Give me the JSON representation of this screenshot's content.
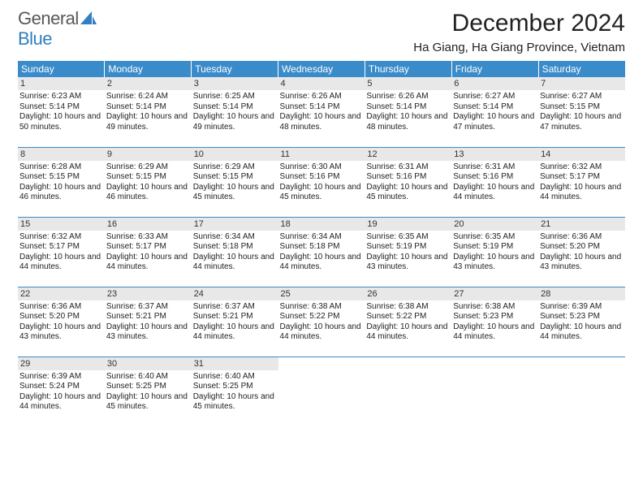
{
  "brand": {
    "part1": "General",
    "part2": "Blue"
  },
  "title": "December 2024",
  "location": "Ha Giang, Ha Giang Province, Vietnam",
  "colors": {
    "header_bg": "#3a8bc9",
    "header_fg": "#ffffff",
    "daynum_bg": "#e8e8e8",
    "rule": "#3a8bc9",
    "logo_gray": "#585858",
    "logo_blue": "#2f7fc1",
    "page_bg": "#ffffff",
    "body_text": "#222222"
  },
  "typography": {
    "title_fontsize": 30,
    "location_fontsize": 15,
    "dayheader_fontsize": 12,
    "daynum_fontsize": 11,
    "body_fontsize": 10,
    "font_family": "Arial"
  },
  "layout": {
    "cols": 7,
    "rows": 5,
    "start_weekday": "Sunday"
  },
  "day_headers": [
    "Sunday",
    "Monday",
    "Tuesday",
    "Wednesday",
    "Thursday",
    "Friday",
    "Saturday"
  ],
  "days": [
    {
      "n": 1,
      "sunrise": "6:23 AM",
      "sunset": "5:14 PM",
      "daylight": "10 hours and 50 minutes."
    },
    {
      "n": 2,
      "sunrise": "6:24 AM",
      "sunset": "5:14 PM",
      "daylight": "10 hours and 49 minutes."
    },
    {
      "n": 3,
      "sunrise": "6:25 AM",
      "sunset": "5:14 PM",
      "daylight": "10 hours and 49 minutes."
    },
    {
      "n": 4,
      "sunrise": "6:26 AM",
      "sunset": "5:14 PM",
      "daylight": "10 hours and 48 minutes."
    },
    {
      "n": 5,
      "sunrise": "6:26 AM",
      "sunset": "5:14 PM",
      "daylight": "10 hours and 48 minutes."
    },
    {
      "n": 6,
      "sunrise": "6:27 AM",
      "sunset": "5:14 PM",
      "daylight": "10 hours and 47 minutes."
    },
    {
      "n": 7,
      "sunrise": "6:27 AM",
      "sunset": "5:15 PM",
      "daylight": "10 hours and 47 minutes."
    },
    {
      "n": 8,
      "sunrise": "6:28 AM",
      "sunset": "5:15 PM",
      "daylight": "10 hours and 46 minutes."
    },
    {
      "n": 9,
      "sunrise": "6:29 AM",
      "sunset": "5:15 PM",
      "daylight": "10 hours and 46 minutes."
    },
    {
      "n": 10,
      "sunrise": "6:29 AM",
      "sunset": "5:15 PM",
      "daylight": "10 hours and 45 minutes."
    },
    {
      "n": 11,
      "sunrise": "6:30 AM",
      "sunset": "5:16 PM",
      "daylight": "10 hours and 45 minutes."
    },
    {
      "n": 12,
      "sunrise": "6:31 AM",
      "sunset": "5:16 PM",
      "daylight": "10 hours and 45 minutes."
    },
    {
      "n": 13,
      "sunrise": "6:31 AM",
      "sunset": "5:16 PM",
      "daylight": "10 hours and 44 minutes."
    },
    {
      "n": 14,
      "sunrise": "6:32 AM",
      "sunset": "5:17 PM",
      "daylight": "10 hours and 44 minutes."
    },
    {
      "n": 15,
      "sunrise": "6:32 AM",
      "sunset": "5:17 PM",
      "daylight": "10 hours and 44 minutes."
    },
    {
      "n": 16,
      "sunrise": "6:33 AM",
      "sunset": "5:17 PM",
      "daylight": "10 hours and 44 minutes."
    },
    {
      "n": 17,
      "sunrise": "6:34 AM",
      "sunset": "5:18 PM",
      "daylight": "10 hours and 44 minutes."
    },
    {
      "n": 18,
      "sunrise": "6:34 AM",
      "sunset": "5:18 PM",
      "daylight": "10 hours and 44 minutes."
    },
    {
      "n": 19,
      "sunrise": "6:35 AM",
      "sunset": "5:19 PM",
      "daylight": "10 hours and 43 minutes."
    },
    {
      "n": 20,
      "sunrise": "6:35 AM",
      "sunset": "5:19 PM",
      "daylight": "10 hours and 43 minutes."
    },
    {
      "n": 21,
      "sunrise": "6:36 AM",
      "sunset": "5:20 PM",
      "daylight": "10 hours and 43 minutes."
    },
    {
      "n": 22,
      "sunrise": "6:36 AM",
      "sunset": "5:20 PM",
      "daylight": "10 hours and 43 minutes."
    },
    {
      "n": 23,
      "sunrise": "6:37 AM",
      "sunset": "5:21 PM",
      "daylight": "10 hours and 43 minutes."
    },
    {
      "n": 24,
      "sunrise": "6:37 AM",
      "sunset": "5:21 PM",
      "daylight": "10 hours and 44 minutes."
    },
    {
      "n": 25,
      "sunrise": "6:38 AM",
      "sunset": "5:22 PM",
      "daylight": "10 hours and 44 minutes."
    },
    {
      "n": 26,
      "sunrise": "6:38 AM",
      "sunset": "5:22 PM",
      "daylight": "10 hours and 44 minutes."
    },
    {
      "n": 27,
      "sunrise": "6:38 AM",
      "sunset": "5:23 PM",
      "daylight": "10 hours and 44 minutes."
    },
    {
      "n": 28,
      "sunrise": "6:39 AM",
      "sunset": "5:23 PM",
      "daylight": "10 hours and 44 minutes."
    },
    {
      "n": 29,
      "sunrise": "6:39 AM",
      "sunset": "5:24 PM",
      "daylight": "10 hours and 44 minutes."
    },
    {
      "n": 30,
      "sunrise": "6:40 AM",
      "sunset": "5:25 PM",
      "daylight": "10 hours and 45 minutes."
    },
    {
      "n": 31,
      "sunrise": "6:40 AM",
      "sunset": "5:25 PM",
      "daylight": "10 hours and 45 minutes."
    }
  ],
  "labels": {
    "sunrise_prefix": "Sunrise: ",
    "sunset_prefix": "Sunset: ",
    "daylight_prefix": "Daylight: "
  }
}
